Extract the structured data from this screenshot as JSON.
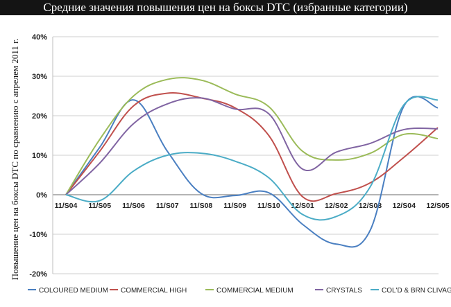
{
  "chart_data": {
    "type": "line",
    "title": "Средние значения повышения цен на боксы DTC (избранные категории)",
    "ylabel": "Повышение цен на боксы DTC по сравнению с апрелем 2011 г.",
    "xlabel": "",
    "categories": [
      "11/S04",
      "11/S05",
      "11/S06",
      "11/S07",
      "11/S08",
      "11/S09",
      "11/S10",
      "12/S01",
      "12/S02",
      "12/S03",
      "12/S04",
      "12/S05"
    ],
    "ylim": [
      -20,
      40
    ],
    "yticks": [
      -20,
      -10,
      0,
      10,
      20,
      30,
      40
    ],
    "ytick_labels": [
      "-20%",
      "-10%",
      "0%",
      "10%",
      "20%",
      "30%",
      "40%"
    ],
    "grid": "horizontal",
    "legend_position": "bottom",
    "series": [
      {
        "name": "COLOURED MEDIUM",
        "color": "#4a7fc1",
        "values": [
          0,
          12,
          24,
          11,
          0.3,
          -0.2,
          0.5,
          -7.5,
          -12.5,
          -9,
          22.5,
          22
        ]
      },
      {
        "name": "COMMERCIAL HIGH",
        "color": "#c0504d",
        "values": [
          0,
          11,
          22.5,
          25.7,
          24.5,
          22,
          15,
          -0.5,
          0.3,
          3,
          9.5,
          17
        ]
      },
      {
        "name": "COMMERCIAL MEDIUM",
        "color": "#9bbb59",
        "values": [
          0,
          14,
          25,
          29.2,
          29,
          25.5,
          22.3,
          11,
          8.8,
          10.5,
          15.3,
          14.2
        ]
      },
      {
        "name": "CRYSTALS",
        "color": "#8064a2",
        "values": [
          0,
          8,
          18,
          23,
          24.5,
          21.7,
          20.5,
          6.5,
          10.8,
          13,
          16.5,
          16.7
        ]
      },
      {
        "name": "COL'D & BRN CLIVAGE",
        "color": "#4bacc6",
        "values": [
          0,
          -1.5,
          6,
          10,
          10.5,
          8.5,
          4.3,
          -5,
          -5.5,
          2,
          22.8,
          24
        ]
      }
    ]
  }
}
